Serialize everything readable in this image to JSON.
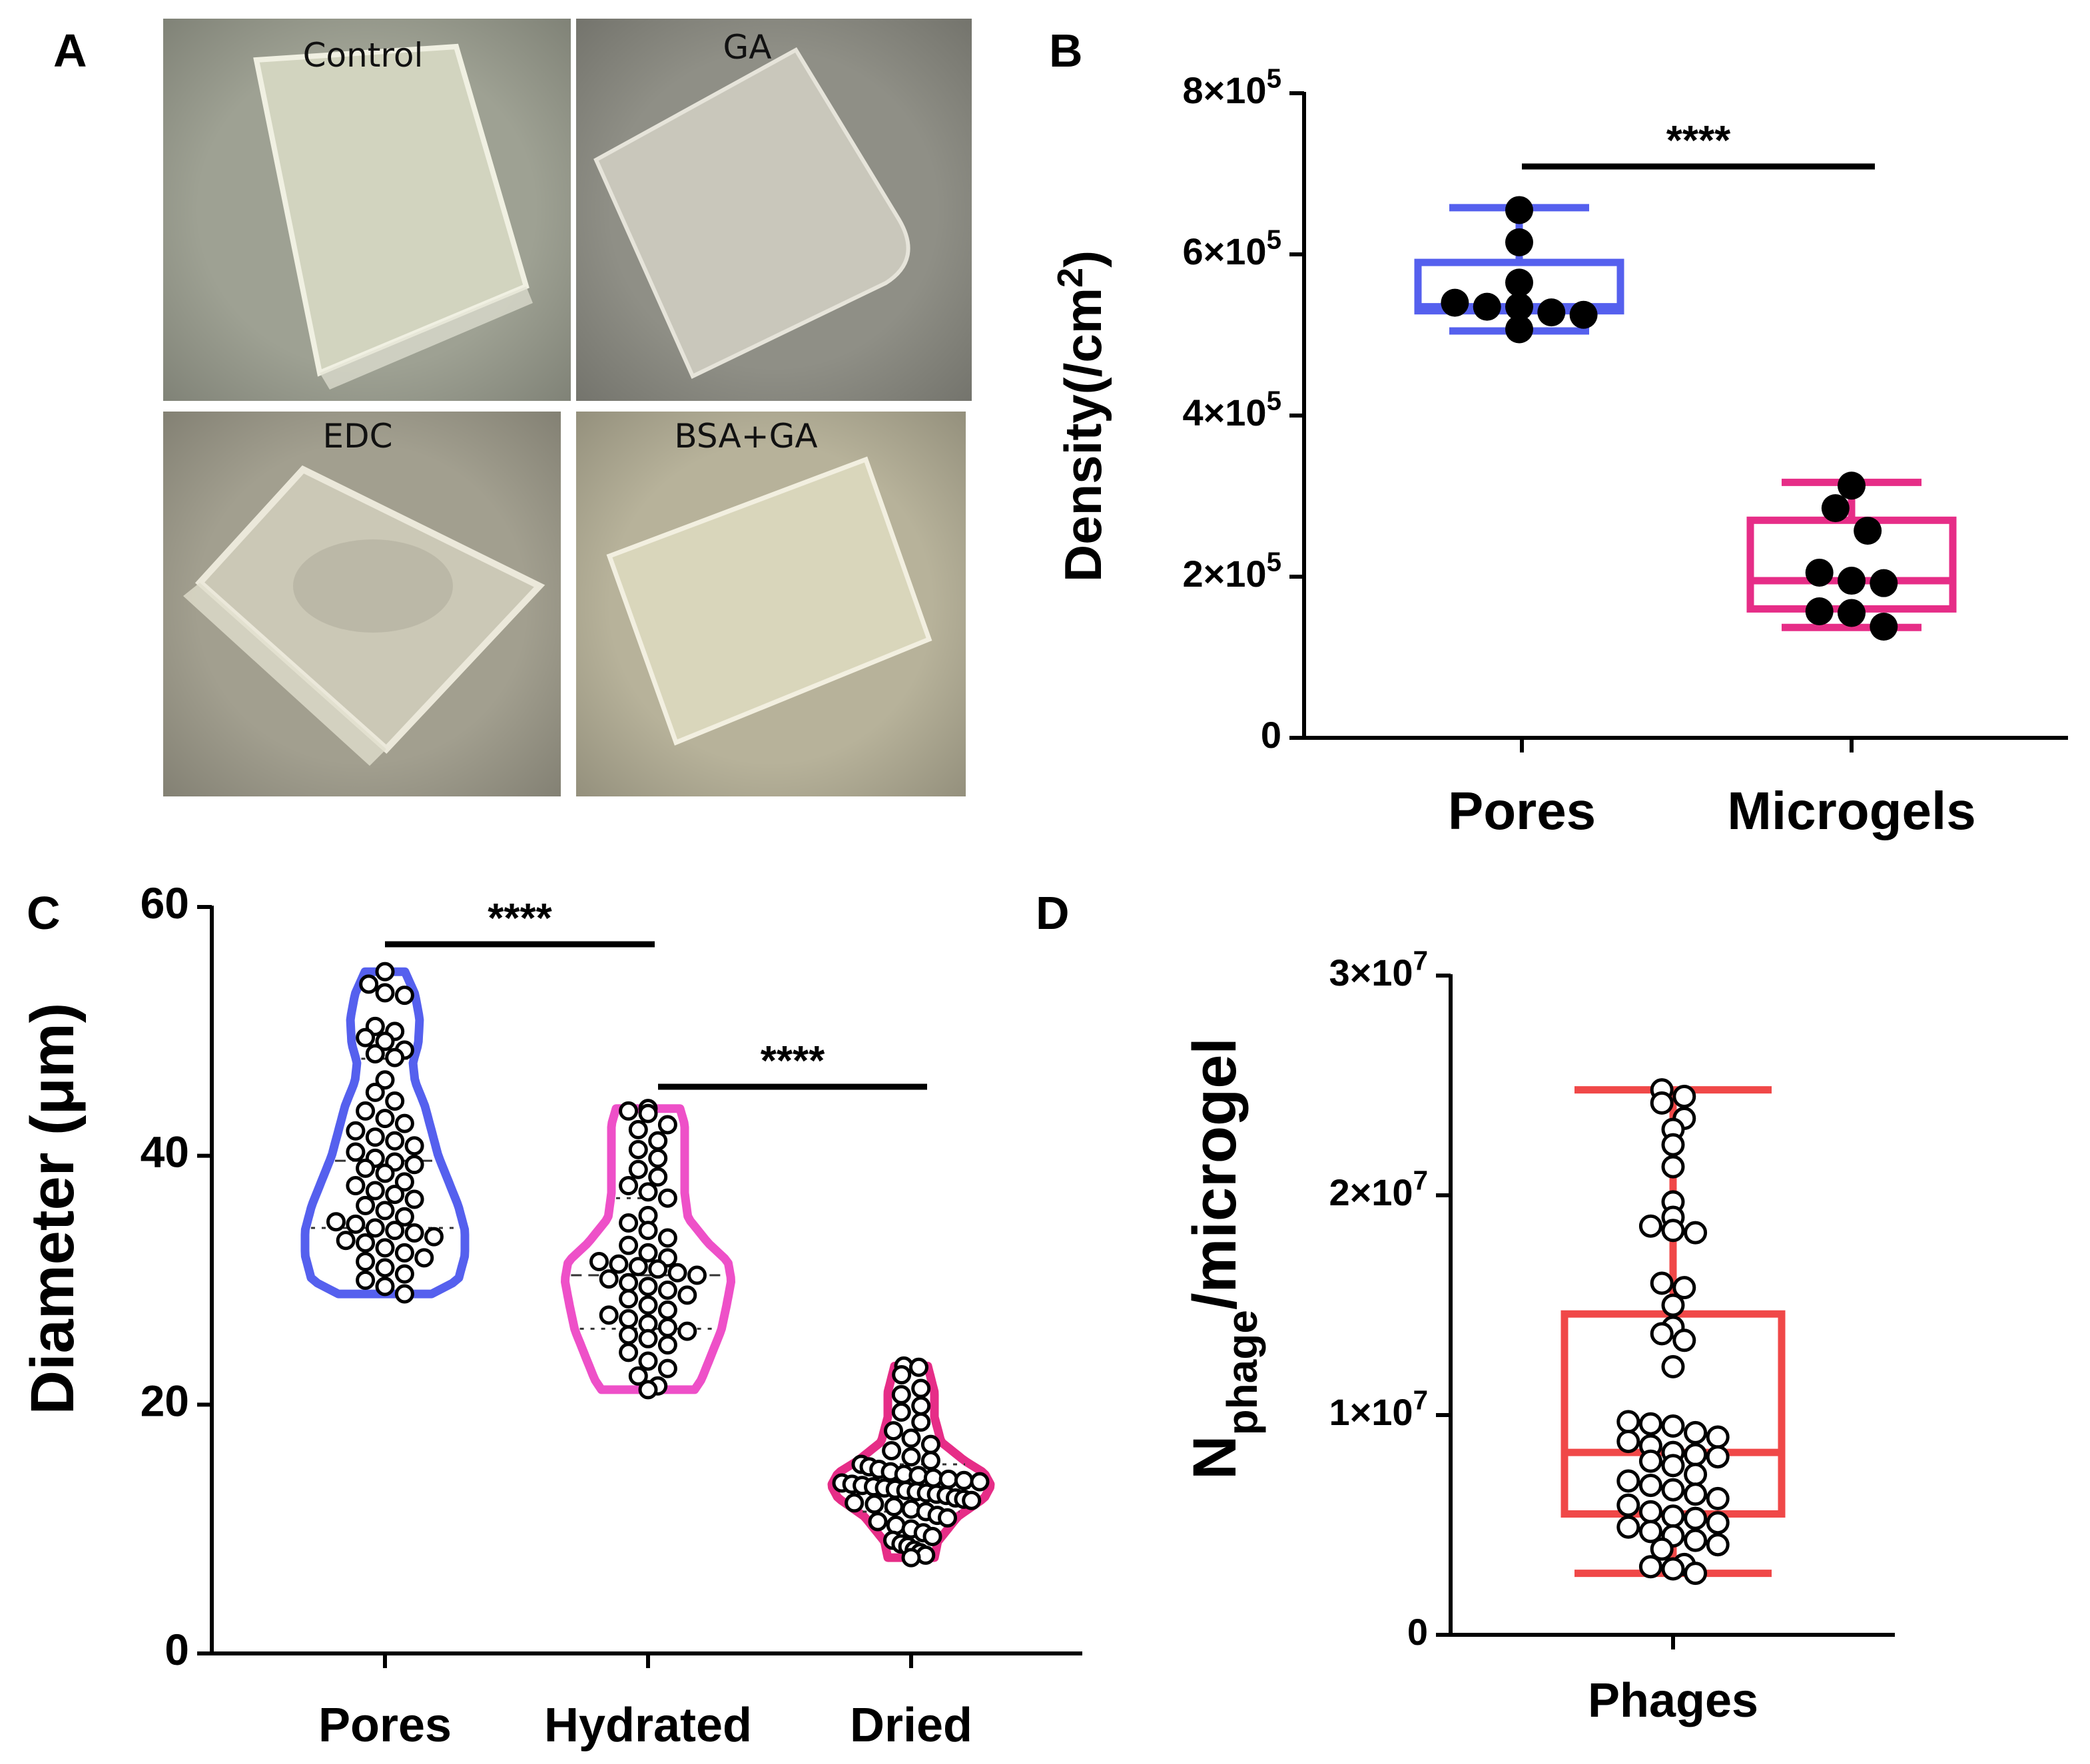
{
  "panel_a": {
    "letter": "A",
    "photos": [
      {
        "label": "Control",
        "background": "#9ea193",
        "sample": "#d2d4bf"
      },
      {
        "label": "GA",
        "background": "#8f8f86",
        "sample": "#c9c7bb"
      },
      {
        "label": "EDC",
        "background": "#a29f8f",
        "sample": "#cbc8b6"
      },
      {
        "label": "BSA+GA",
        "background": "#b7b29a",
        "sample": "#d9d6bb"
      }
    ]
  },
  "chart_data": [
    {
      "panel": "B",
      "type": "box",
      "ylabel": "Density(/cm",
      "ylabel_sup": "2",
      "ylabel_end": ")",
      "ylim": [
        0,
        800000
      ],
      "yticks": [
        {
          "value": 0,
          "mant": "0",
          "exp": ""
        },
        {
          "value": 200000,
          "mant": "2×10",
          "exp": "5"
        },
        {
          "value": 400000,
          "mant": "4×10",
          "exp": "5"
        },
        {
          "value": 600000,
          "mant": "6×10",
          "exp": "5"
        },
        {
          "value": 800000,
          "mant": "8×10",
          "exp": "5"
        }
      ],
      "categories": [
        "Pores",
        "Microgels"
      ],
      "significance": [
        {
          "from": 0,
          "to": 1,
          "label": "****"
        }
      ],
      "series": [
        {
          "color": "#5560ee",
          "min": 505000,
          "q1": 530000,
          "median": 535000,
          "q3": 590000,
          "max": 658000,
          "points": [
            655000,
            615000,
            565000,
            540000,
            535000,
            535000,
            528000,
            525000,
            507000
          ]
        },
        {
          "color": "#e62d87",
          "min": 137000,
          "q1": 160000,
          "median": 195000,
          "q3": 270000,
          "max": 317000,
          "points": [
            313000,
            285000,
            257000,
            205000,
            195000,
            192000,
            157000,
            155000,
            138000
          ]
        }
      ]
    },
    {
      "panel": "C",
      "type": "violin",
      "ylabel": "Diameter (μm)",
      "ylim": [
        0,
        60
      ],
      "yticks": [
        {
          "value": 0,
          "mant": "0",
          "exp": ""
        },
        {
          "value": 20,
          "mant": "20",
          "exp": ""
        },
        {
          "value": 40,
          "mant": "40",
          "exp": ""
        },
        {
          "value": 60,
          "mant": "60",
          "exp": ""
        }
      ],
      "categories": [
        "Pores",
        "Hydrated",
        "Dried"
      ],
      "significance": [
        {
          "from": 0,
          "to": 1,
          "label": "****"
        },
        {
          "from": 1,
          "to": 2,
          "label": "****"
        }
      ],
      "series": [
        {
          "color": "#5560ee",
          "min": 28.9,
          "max": 54.8,
          "q1": 34.2,
          "median": 39.6,
          "q3": 47.8,
          "points": [
            54.8,
            53.8,
            53.1,
            52.9,
            50.4,
            50.0,
            49.5,
            49.2,
            48.5,
            48.2,
            47.9,
            46.1,
            45.1,
            44.4,
            43.6,
            43.0,
            42.6,
            42.0,
            41.5,
            41.2,
            40.8,
            40.3,
            39.8,
            39.5,
            39.3,
            39.0,
            38.6,
            37.9,
            37.6,
            37.2,
            36.9,
            36.5,
            36.0,
            35.6,
            35.1,
            34.7,
            34.5,
            34.2,
            34.0,
            33.8,
            33.5,
            33.2,
            33.0,
            32.6,
            32.2,
            31.8,
            31.5,
            31.0,
            30.5,
            30.0,
            29.5,
            28.9
          ]
        },
        {
          "color": "#ee50c8",
          "min": 21.2,
          "max": 43.8,
          "q1": 26.1,
          "median": 30.4,
          "q3": 36.6,
          "points": [
            43.8,
            43.6,
            43.4,
            42.5,
            42.1,
            41.2,
            40.5,
            39.8,
            38.9,
            38.3,
            37.6,
            37.1,
            36.6,
            35.2,
            34.6,
            34.0,
            33.4,
            32.8,
            32.2,
            31.8,
            31.5,
            31.3,
            31.1,
            30.9,
            30.6,
            30.4,
            30.1,
            29.8,
            29.5,
            29.2,
            28.8,
            28.5,
            28.0,
            27.6,
            27.2,
            26.9,
            26.5,
            26.2,
            25.9,
            25.6,
            25.3,
            24.8,
            24.2,
            23.5,
            22.9,
            22.3,
            21.5,
            21.2
          ]
        },
        {
          "color": "#e62d87",
          "min": 7.7,
          "max": 23.1,
          "q1": 11.4,
          "median": 13.3,
          "q3": 15.2,
          "points": [
            23.1,
            23.0,
            22.4,
            21.3,
            20.8,
            19.9,
            19.4,
            18.6,
            17.9,
            17.3,
            16.8,
            16.3,
            15.8,
            15.5,
            15.2,
            15.0,
            14.8,
            14.6,
            14.4,
            14.3,
            14.1,
            14.0,
            13.9,
            13.8,
            13.7,
            13.6,
            13.5,
            13.4,
            13.3,
            13.2,
            13.1,
            13.0,
            12.9,
            12.8,
            12.7,
            12.5,
            12.4,
            12.3,
            12.1,
            12.0,
            11.8,
            11.6,
            11.4,
            11.1,
            10.9,
            10.6,
            10.3,
            10.0,
            9.7,
            9.4,
            9.1,
            8.8,
            8.6,
            8.3,
            8.1,
            7.9,
            7.7
          ]
        }
      ]
    },
    {
      "panel": "D",
      "type": "box",
      "ylabel": "N",
      "ylabel_sub": "phage",
      "ylabel_end": "/microgel",
      "ylim": [
        0,
        30000000
      ],
      "yticks": [
        {
          "value": 0,
          "mant": "0",
          "exp": ""
        },
        {
          "value": 10000000,
          "mant": "1×10",
          "exp": "7"
        },
        {
          "value": 20000000,
          "mant": "2×10",
          "exp": "7"
        },
        {
          "value": 30000000,
          "mant": "3×10",
          "exp": "7"
        }
      ],
      "categories": [
        "Phages"
      ],
      "series": [
        {
          "color": "#f04848",
          "min": 2800000,
          "q1": 5500000,
          "median": 8300000,
          "q3": 14600000,
          "max": 24800000,
          "points": [
            24800000,
            24500000,
            24200000,
            23500000,
            23000000,
            22300000,
            21300000,
            19700000,
            19000000,
            18600000,
            18400000,
            18300000,
            16000000,
            15800000,
            15000000,
            14000000,
            13700000,
            13400000,
            12200000,
            9700000,
            9600000,
            9500000,
            9200000,
            9000000,
            8800000,
            8600000,
            8300000,
            8200000,
            8100000,
            7900000,
            7700000,
            7300000,
            7000000,
            6800000,
            6600000,
            6400000,
            6200000,
            5900000,
            5600000,
            5400000,
            5300000,
            5100000,
            4900000,
            4700000,
            4500000,
            4300000,
            4100000,
            3900000,
            3200000,
            3100000,
            3000000,
            2800000
          ]
        }
      ]
    }
  ]
}
